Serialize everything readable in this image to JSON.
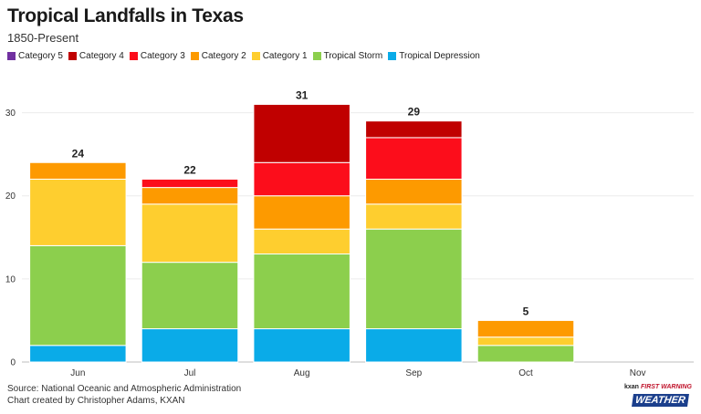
{
  "header": {
    "title": "Tropical Landfalls in Texas",
    "subtitle": "1850-Present"
  },
  "footer": {
    "source": "Source: National Oceanic and Atmospheric Administration",
    "credit": "Chart created by Christopher Adams, KXAN"
  },
  "brand": {
    "station": "kxan",
    "tagline": "FIRST WARNING",
    "name": "WEATHER"
  },
  "chart_data": {
    "type": "bar",
    "stacked": true,
    "title": "Tropical Landfalls in Texas",
    "subtitle": "1850-Present",
    "xlabel": "",
    "ylabel": "",
    "ylim": [
      0,
      35
    ],
    "yticks": [
      0,
      10,
      20,
      30
    ],
    "grid": true,
    "legend_position": "top-left",
    "categories": [
      "Jun",
      "Jul",
      "Aug",
      "Sep",
      "Oct",
      "Nov"
    ],
    "totals": [
      24,
      22,
      31,
      29,
      5,
      0
    ],
    "legend_order": [
      "Category 5",
      "Category 4",
      "Category 3",
      "Category 2",
      "Category 1",
      "Tropical Storm",
      "Tropical Depression"
    ],
    "series": [
      {
        "name": "Tropical Depression",
        "color": "#0aabe8",
        "values": [
          2,
          4,
          4,
          4,
          0,
          0
        ]
      },
      {
        "name": "Tropical Storm",
        "color": "#8ccf4d",
        "values": [
          12,
          8,
          9,
          12,
          2,
          0
        ]
      },
      {
        "name": "Category 1",
        "color": "#fece2f",
        "values": [
          8,
          7,
          3,
          3,
          1,
          0
        ]
      },
      {
        "name": "Category 2",
        "color": "#fd9a00",
        "values": [
          2,
          2,
          4,
          3,
          2,
          0
        ]
      },
      {
        "name": "Category 3",
        "color": "#fc0d1b",
        "values": [
          0,
          1,
          4,
          5,
          0,
          0
        ]
      },
      {
        "name": "Category 4",
        "color": "#c00000",
        "values": [
          0,
          0,
          7,
          2,
          0,
          0
        ]
      },
      {
        "name": "Category 5",
        "color": "#7030a0",
        "values": [
          0,
          0,
          0,
          0,
          0,
          0
        ]
      }
    ]
  }
}
